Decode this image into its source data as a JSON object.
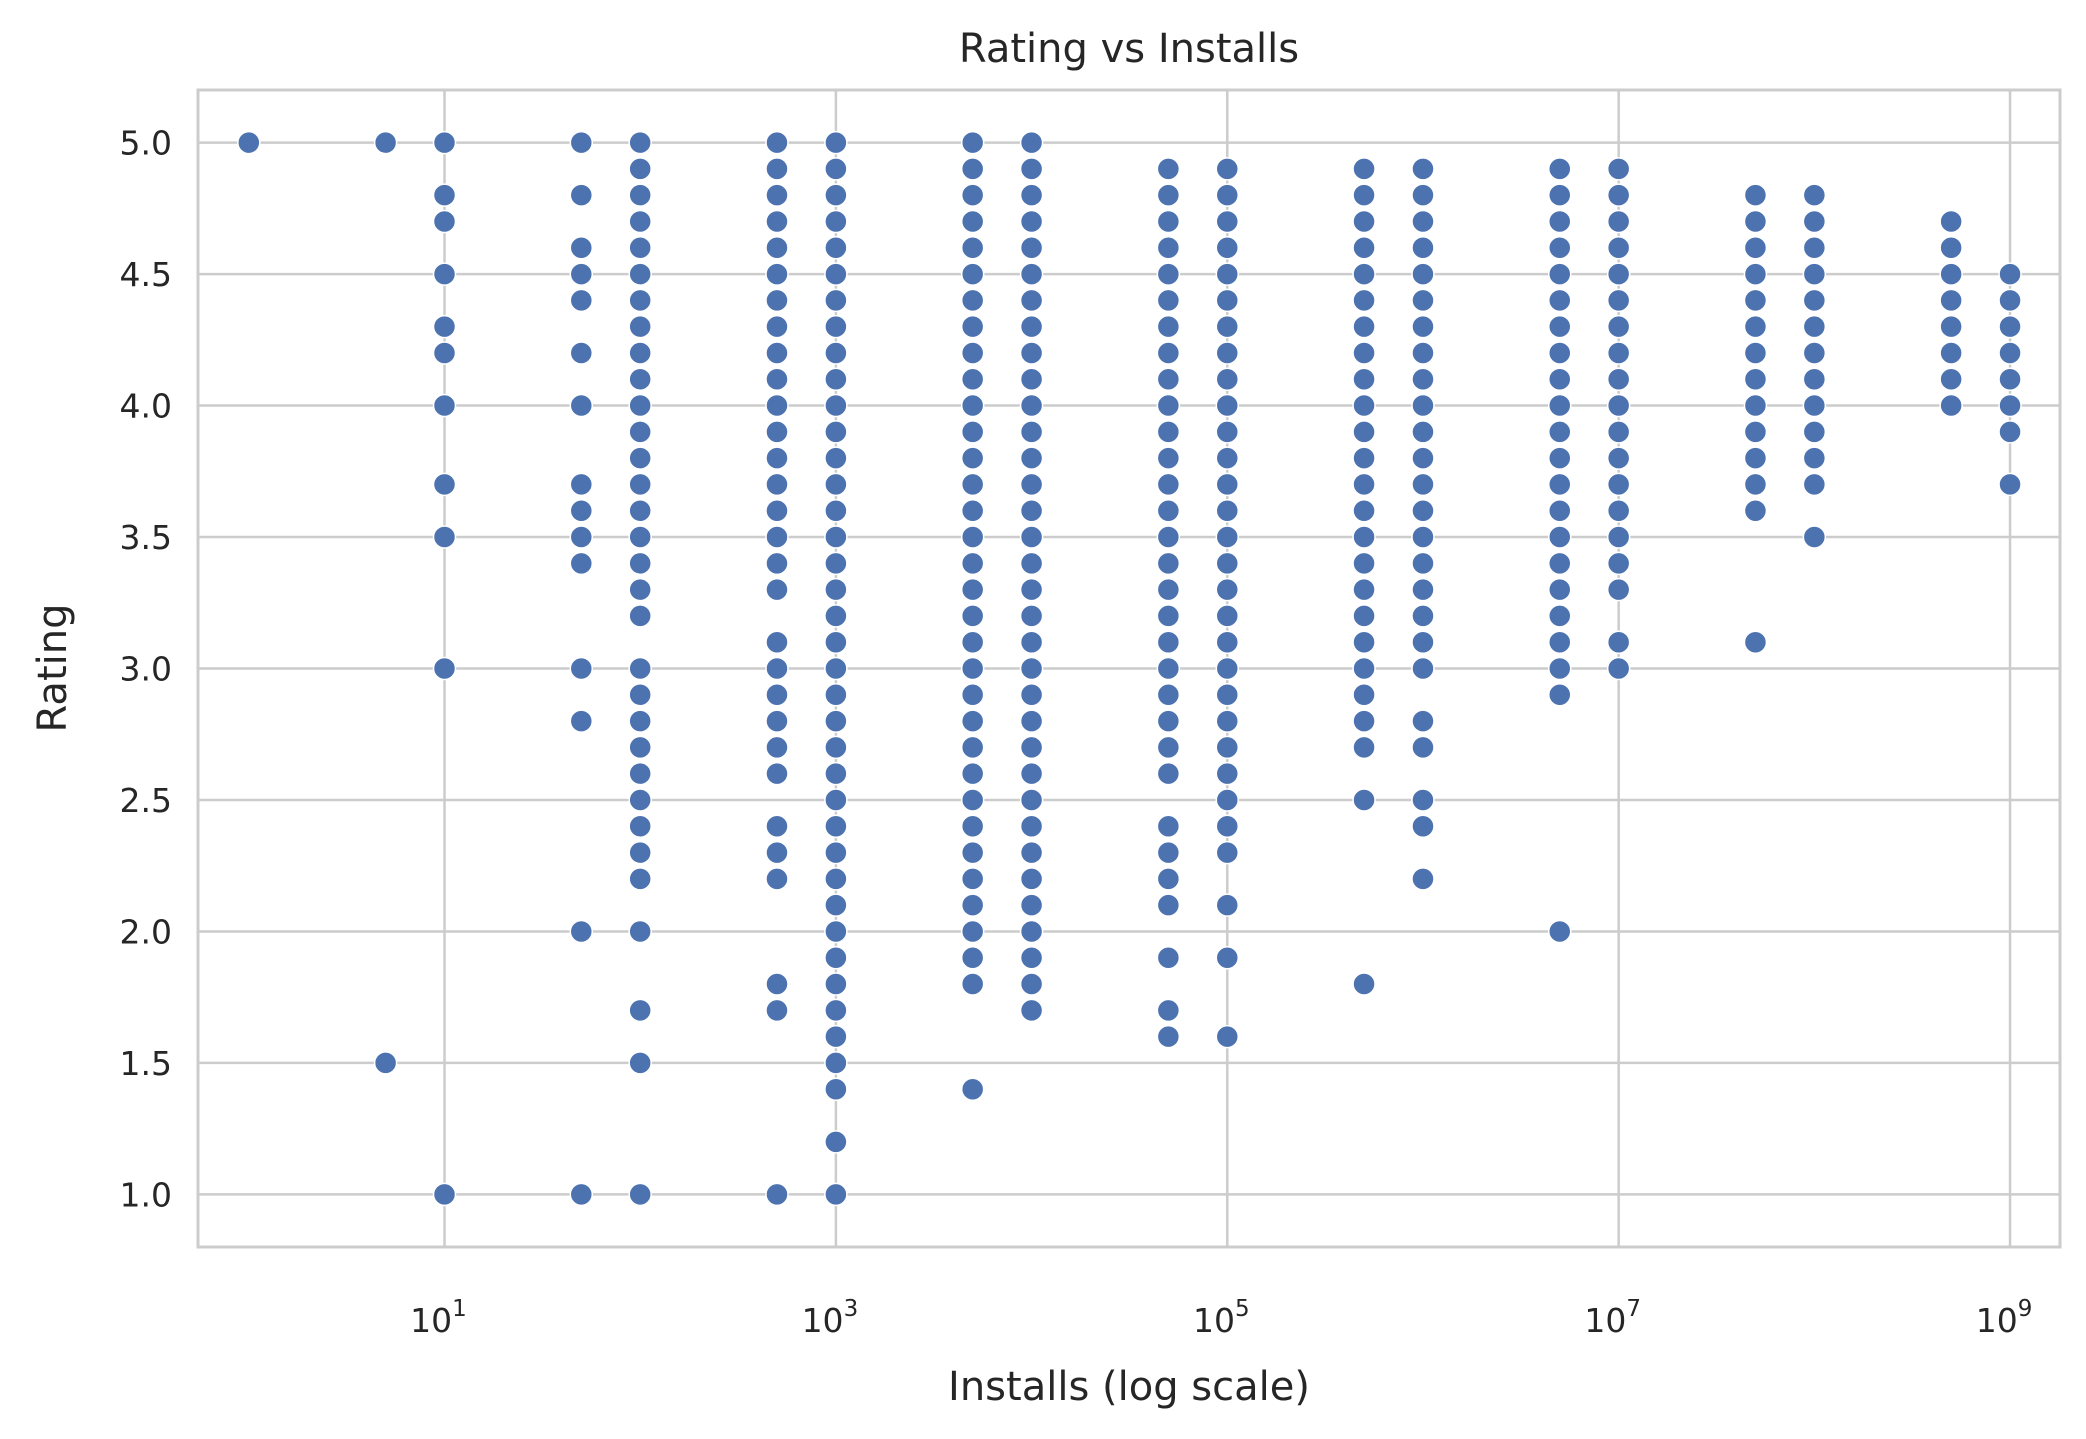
{
  "chart_data": {
    "type": "scatter",
    "title": "Rating vs Installs",
    "xlabel": "Installs (log scale)",
    "ylabel": "Rating",
    "xscale": "log",
    "xlim": [
      0.55,
      1800000000
    ],
    "ylim": [
      0.8,
      5.2
    ],
    "x_ticks": [
      {
        "value": 10,
        "base": "10",
        "exp": "1"
      },
      {
        "value": 1000,
        "base": "10",
        "exp": "3"
      },
      {
        "value": 100000,
        "base": "10",
        "exp": "5"
      },
      {
        "value": 10000000,
        "base": "10",
        "exp": "7"
      },
      {
        "value": 1000000000,
        "base": "10",
        "exp": "9"
      }
    ],
    "y_ticks": [
      "1.0",
      "1.5",
      "2.0",
      "2.5",
      "3.0",
      "3.5",
      "4.0",
      "4.5",
      "5.0"
    ],
    "grid": true,
    "marker_color": "#4c72b0",
    "groups": [
      {
        "x": 1,
        "ratings": [
          5.0
        ]
      },
      {
        "x": 5,
        "ratings": [
          5.0,
          1.5
        ]
      },
      {
        "x": 10,
        "ratings": [
          5.0,
          4.8,
          4.7,
          4.5,
          4.3,
          4.2,
          4.0,
          3.7,
          3.5,
          3.0,
          1.0
        ]
      },
      {
        "x": 50,
        "ratings": [
          5.0,
          4.8,
          4.6,
          4.5,
          4.4,
          4.2,
          4.0,
          3.7,
          3.6,
          3.5,
          3.4,
          3.0,
          2.8,
          2.0,
          1.0
        ]
      },
      {
        "x": 100,
        "ratings": [
          5.0,
          4.9,
          4.8,
          4.7,
          4.6,
          4.5,
          4.4,
          4.3,
          4.2,
          4.1,
          4.0,
          3.9,
          3.8,
          3.7,
          3.6,
          3.5,
          3.4,
          3.3,
          3.2,
          3.0,
          2.9,
          2.8,
          2.7,
          2.6,
          2.5,
          2.4,
          2.3,
          2.2,
          2.0,
          1.7,
          1.5,
          1.0
        ]
      },
      {
        "x": 500,
        "ratings": [
          5.0,
          4.9,
          4.8,
          4.7,
          4.6,
          4.5,
          4.4,
          4.3,
          4.2,
          4.1,
          4.0,
          3.9,
          3.8,
          3.7,
          3.6,
          3.5,
          3.4,
          3.3,
          3.1,
          3.0,
          2.9,
          2.8,
          2.7,
          2.6,
          2.4,
          2.3,
          2.2,
          1.8,
          1.7,
          1.0
        ]
      },
      {
        "x": 1000,
        "ratings": [
          5.0,
          4.9,
          4.8,
          4.7,
          4.6,
          4.5,
          4.4,
          4.3,
          4.2,
          4.1,
          4.0,
          3.9,
          3.8,
          3.7,
          3.6,
          3.5,
          3.4,
          3.3,
          3.2,
          3.1,
          3.0,
          2.9,
          2.8,
          2.7,
          2.6,
          2.5,
          2.4,
          2.3,
          2.2,
          2.1,
          2.0,
          1.9,
          1.8,
          1.7,
          1.6,
          1.5,
          1.4,
          1.2,
          1.0
        ]
      },
      {
        "x": 5000,
        "ratings": [
          5.0,
          4.9,
          4.8,
          4.7,
          4.6,
          4.5,
          4.4,
          4.3,
          4.2,
          4.1,
          4.0,
          3.9,
          3.8,
          3.7,
          3.6,
          3.5,
          3.4,
          3.3,
          3.2,
          3.1,
          3.0,
          2.9,
          2.8,
          2.7,
          2.6,
          2.5,
          2.4,
          2.3,
          2.2,
          2.1,
          2.0,
          1.9,
          1.8,
          1.4
        ]
      },
      {
        "x": 10000,
        "ratings": [
          5.0,
          4.9,
          4.8,
          4.7,
          4.6,
          4.5,
          4.4,
          4.3,
          4.2,
          4.1,
          4.0,
          3.9,
          3.8,
          3.7,
          3.6,
          3.5,
          3.4,
          3.3,
          3.2,
          3.1,
          3.0,
          2.9,
          2.8,
          2.7,
          2.6,
          2.5,
          2.4,
          2.3,
          2.2,
          2.1,
          2.0,
          1.9,
          1.8,
          1.7
        ]
      },
      {
        "x": 50000,
        "ratings": [
          4.9,
          4.8,
          4.7,
          4.6,
          4.5,
          4.4,
          4.3,
          4.2,
          4.1,
          4.0,
          3.9,
          3.8,
          3.7,
          3.6,
          3.5,
          3.4,
          3.3,
          3.2,
          3.1,
          3.0,
          2.9,
          2.8,
          2.7,
          2.6,
          2.4,
          2.3,
          2.2,
          2.1,
          1.9,
          1.7,
          1.6
        ]
      },
      {
        "x": 100000,
        "ratings": [
          4.9,
          4.8,
          4.7,
          4.6,
          4.5,
          4.4,
          4.3,
          4.2,
          4.1,
          4.0,
          3.9,
          3.8,
          3.7,
          3.6,
          3.5,
          3.4,
          3.3,
          3.2,
          3.1,
          3.0,
          2.9,
          2.8,
          2.7,
          2.6,
          2.5,
          2.4,
          2.3,
          2.1,
          1.9,
          1.6
        ]
      },
      {
        "x": 500000,
        "ratings": [
          4.9,
          4.8,
          4.7,
          4.6,
          4.5,
          4.4,
          4.3,
          4.2,
          4.1,
          4.0,
          3.9,
          3.8,
          3.7,
          3.6,
          3.5,
          3.4,
          3.3,
          3.2,
          3.1,
          3.0,
          2.9,
          2.8,
          2.7,
          2.5,
          1.8
        ]
      },
      {
        "x": 1000000,
        "ratings": [
          4.9,
          4.8,
          4.7,
          4.6,
          4.5,
          4.4,
          4.3,
          4.2,
          4.1,
          4.0,
          3.9,
          3.8,
          3.7,
          3.6,
          3.5,
          3.4,
          3.3,
          3.2,
          3.1,
          3.0,
          2.8,
          2.7,
          2.5,
          2.4,
          2.2
        ]
      },
      {
        "x": 5000000,
        "ratings": [
          4.9,
          4.8,
          4.7,
          4.6,
          4.5,
          4.4,
          4.3,
          4.2,
          4.1,
          4.0,
          3.9,
          3.8,
          3.7,
          3.6,
          3.5,
          3.4,
          3.3,
          3.2,
          3.1,
          3.0,
          2.9,
          2.0
        ]
      },
      {
        "x": 10000000,
        "ratings": [
          4.9,
          4.8,
          4.7,
          4.6,
          4.5,
          4.4,
          4.3,
          4.2,
          4.1,
          4.0,
          3.9,
          3.8,
          3.7,
          3.6,
          3.5,
          3.4,
          3.3,
          3.1,
          3.0
        ]
      },
      {
        "x": 50000000,
        "ratings": [
          4.8,
          4.7,
          4.6,
          4.5,
          4.4,
          4.3,
          4.2,
          4.1,
          4.0,
          3.9,
          3.8,
          3.7,
          3.6,
          3.1
        ]
      },
      {
        "x": 100000000,
        "ratings": [
          4.8,
          4.7,
          4.6,
          4.5,
          4.4,
          4.3,
          4.2,
          4.1,
          4.0,
          3.9,
          3.8,
          3.7,
          3.5
        ]
      },
      {
        "x": 500000000,
        "ratings": [
          4.7,
          4.6,
          4.5,
          4.4,
          4.3,
          4.2,
          4.1,
          4.0
        ]
      },
      {
        "x": 1000000000,
        "ratings": [
          4.5,
          4.4,
          4.3,
          4.2,
          4.1,
          4.0,
          3.9,
          3.7
        ]
      }
    ]
  }
}
